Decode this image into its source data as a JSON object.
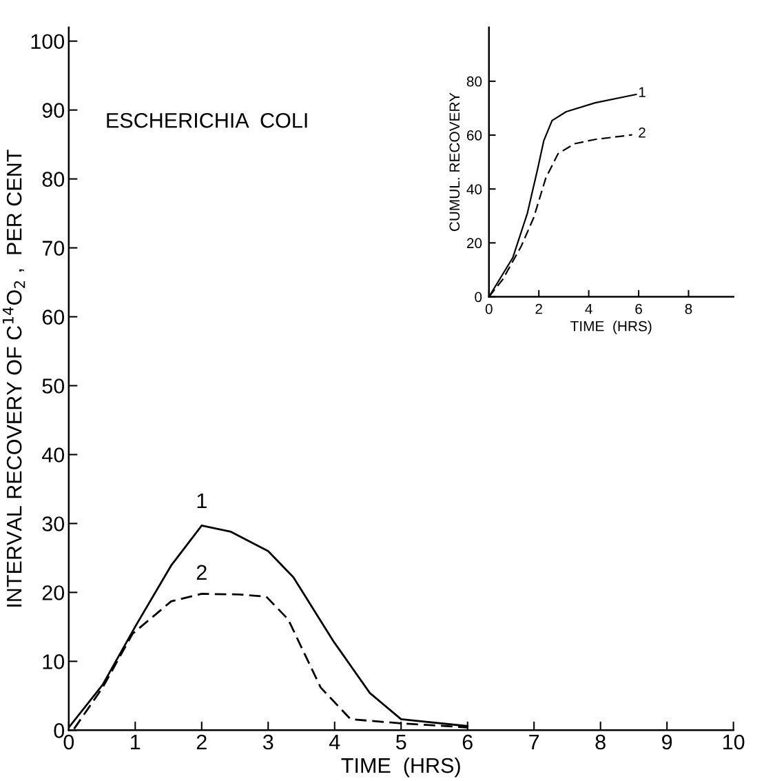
{
  "chart_data": [
    {
      "type": "line",
      "xlabel": "TIME  (HRS)",
      "ylabel": "INTERVAL RECOVERY OF C$^{14}$O$_{2}$ ,  PER CENT",
      "xlim": [
        0,
        10
      ],
      "ylim": [
        0,
        102
      ],
      "xticks": [
        0,
        1,
        2,
        3,
        4,
        5,
        6,
        7,
        8,
        9,
        10
      ],
      "yticks": [
        0,
        10,
        20,
        30,
        40,
        50,
        60,
        70,
        80,
        90,
        100
      ],
      "grid": false,
      "legend": false,
      "annotations": [
        "ESCHERICHIA  COLI",
        "1",
        "2"
      ],
      "series": [
        {
          "color": "#000000",
          "line_style": "solid",
          "x": [
            0,
            0.51,
            1.01,
            1.54,
            2.0,
            2.44,
            3.0,
            3.38,
            3.99,
            4.53,
            5.0,
            6.0
          ],
          "values": [
            0.4,
            6.6,
            15.2,
            23.9,
            29.7,
            28.8,
            26.0,
            22.2,
            12.8,
            5.4,
            1.6,
            0.6
          ]
        },
        {
          "color": "#000000",
          "line_style": "dashed",
          "x": [
            0.08,
            0.51,
            0.96,
            1.54,
            2.0,
            2.56,
            2.97,
            3.3,
            3.79,
            4.24,
            5.0,
            6.0
          ],
          "values": [
            0.2,
            6.2,
            14.0,
            18.7,
            19.8,
            19.7,
            19.4,
            16.1,
            6.2,
            1.6,
            1.0,
            0.4
          ]
        }
      ]
    },
    {
      "type": "line",
      "xlabel": "TIME  (HRS)",
      "ylabel": "CUMUL. RECOVERY",
      "xlim": [
        0,
        9.8
      ],
      "ylim": [
        0,
        100
      ],
      "xticks": [
        0,
        2,
        4,
        6,
        8
      ],
      "yticks": [
        0,
        20,
        40,
        60,
        80
      ],
      "grid": false,
      "legend": false,
      "annotations": [
        "1",
        "2"
      ],
      "series": [
        {
          "color": "#000000",
          "line_style": "solid",
          "x": [
            0,
            0.96,
            1.54,
            1.95,
            2.2,
            2.53,
            3.1,
            4.26,
            5.9
          ],
          "values": [
            0,
            14.6,
            31,
            47.4,
            58,
            65.4,
            68.7,
            72,
            75.1
          ]
        },
        {
          "color": "#000000",
          "line_style": "dashed",
          "x": [
            0,
            0.55,
            1.29,
            1.79,
            2.28,
            2.77,
            3.43,
            4.26,
            5.74
          ],
          "values": [
            0,
            6.4,
            18.7,
            29.3,
            44.1,
            53.1,
            56.8,
            58.4,
            60.1
          ]
        }
      ]
    }
  ]
}
